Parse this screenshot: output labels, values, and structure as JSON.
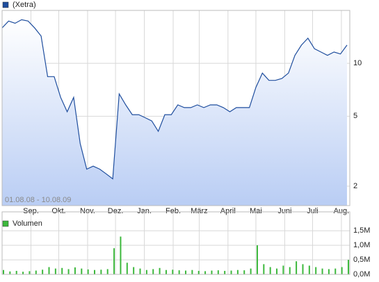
{
  "chart_data": [
    {
      "type": "line",
      "log_scale": true,
      "grid": true,
      "fill": true,
      "annotation": "01.08.08 - 10.08.09",
      "x": [
        0,
        1,
        2,
        3,
        4,
        5,
        6,
        7,
        8,
        9,
        10,
        11,
        12,
        13,
        14,
        15,
        16,
        17,
        18,
        19,
        20,
        21,
        22,
        23,
        24,
        25,
        26,
        27,
        28,
        29,
        30,
        31,
        32,
        33,
        34,
        35,
        36,
        37,
        38,
        39,
        40,
        41,
        42,
        43,
        44,
        45,
        46,
        47,
        48,
        49,
        50,
        51,
        52,
        53
      ],
      "series": [
        {
          "name": "(Xetra)",
          "color": "#1f4e9e",
          "values": [
            15.9,
            17.4,
            16.9,
            17.7,
            17.4,
            15.9,
            14.3,
            8.4,
            8.4,
            6.4,
            5.3,
            6.4,
            3.5,
            2.5,
            2.6,
            2.5,
            2.35,
            2.2,
            6.7,
            5.8,
            5.1,
            5.1,
            4.9,
            4.7,
            4.1,
            5.1,
            5.1,
            5.8,
            5.6,
            5.6,
            5.8,
            5.6,
            5.8,
            5.8,
            5.6,
            5.3,
            5.6,
            5.6,
            5.6,
            7.3,
            8.8,
            8.0,
            8.0,
            8.2,
            8.8,
            11.1,
            12.7,
            13.9,
            12.1,
            11.6,
            11.1,
            11.6,
            11.3,
            12.7
          ]
        }
      ],
      "xlim": [
        0,
        53.43
      ],
      "xticks": [
        {
          "value": 4.43,
          "label": "Sep."
        },
        {
          "value": 8.71,
          "label": "Okt."
        },
        {
          "value": 13.14,
          "label": "Nov."
        },
        {
          "value": 17.43,
          "label": "Dez."
        },
        {
          "value": 21.86,
          "label": "Jan."
        },
        {
          "value": 26.29,
          "label": "Feb."
        },
        {
          "value": 30.29,
          "label": "März"
        },
        {
          "value": 34.71,
          "label": "April"
        },
        {
          "value": 39,
          "label": "Mai"
        },
        {
          "value": 43.43,
          "label": "Juni"
        },
        {
          "value": 47.71,
          "label": "Juli"
        },
        {
          "value": 52.14,
          "label": "Aug."
        }
      ],
      "ylim": [
        1.55,
        20
      ],
      "yticks": [
        2,
        5,
        10
      ]
    },
    {
      "type": "bar",
      "grid": true,
      "x": [
        0,
        1,
        2,
        3,
        4,
        5,
        6,
        7,
        8,
        9,
        10,
        11,
        12,
        13,
        14,
        15,
        16,
        17,
        18,
        19,
        20,
        21,
        22,
        23,
        24,
        25,
        26,
        27,
        28,
        29,
        30,
        31,
        32,
        33,
        34,
        35,
        36,
        37,
        38,
        39,
        40,
        41,
        42,
        43,
        44,
        45,
        46,
        47,
        48,
        49,
        50,
        51,
        52,
        53
      ],
      "series": [
        {
          "name": "Volumen",
          "color": "#3cb83c",
          "values": [
            150000,
            100000,
            120000,
            90000,
            110000,
            130000,
            160000,
            250000,
            200000,
            220000,
            180000,
            240000,
            200000,
            170000,
            150000,
            160000,
            180000,
            900000,
            1300000,
            400000,
            250000,
            200000,
            150000,
            180000,
            220000,
            150000,
            160000,
            140000,
            130000,
            150000,
            120000,
            110000,
            130000,
            140000,
            120000,
            130000,
            150000,
            140000,
            200000,
            1000000,
            350000,
            250000,
            200000,
            300000,
            250000,
            450000,
            350000,
            300000,
            250000,
            200000,
            180000,
            200000,
            250000,
            500000
          ]
        }
      ],
      "xlim": [
        0,
        53.43
      ],
      "ylim": [
        0,
        2150000
      ],
      "yticks": [
        {
          "value": 0,
          "label": "0,0M"
        },
        {
          "value": 500000,
          "label": "0,5M"
        },
        {
          "value": 1000000,
          "label": "1,0M"
        },
        {
          "value": 1500000,
          "label": "1,5M"
        }
      ]
    }
  ]
}
